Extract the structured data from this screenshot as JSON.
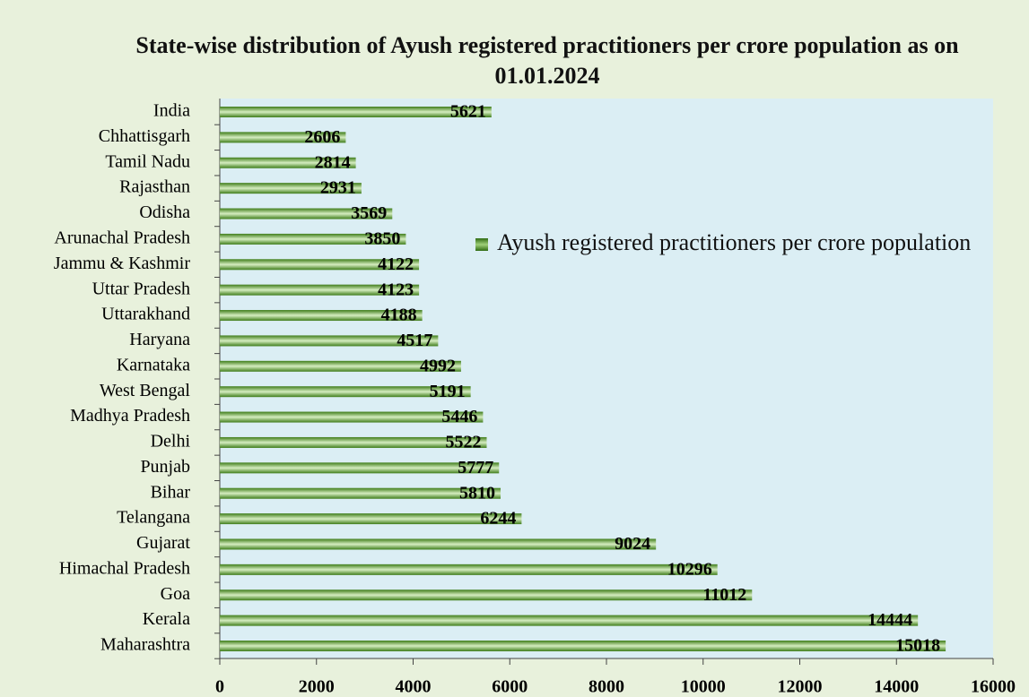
{
  "chart_data": {
    "type": "bar",
    "orientation": "horizontal",
    "title": "State-wise distribution of Ayush registered practitioners per crore population as on 01.01.2024",
    "categories": [
      "India",
      "Chhattisgarh",
      "Tamil Nadu",
      "Rajasthan",
      "Odisha",
      "Arunachal Pradesh",
      "Jammu & Kashmir",
      "Uttar Pradesh",
      "Uttarakhand",
      "Haryana",
      "Karnataka",
      "West Bengal",
      "Madhya Pradesh",
      "Delhi",
      "Punjab",
      "Bihar",
      "Telangana",
      "Gujarat",
      "Himachal Pradesh",
      "Goa",
      "Kerala",
      "Maharashtra"
    ],
    "series": [
      {
        "name": "Ayush registered practitioners per crore population",
        "color": "#4f8f25",
        "values": [
          5621,
          2606,
          2814,
          2931,
          3569,
          3850,
          4122,
          4123,
          4188,
          4517,
          4992,
          5191,
          5446,
          5522,
          5777,
          5810,
          6244,
          9024,
          10296,
          11012,
          14444,
          15018
        ]
      }
    ],
    "xlim": [
      0,
      16000
    ],
    "xticks": [
      0,
      2000,
      4000,
      6000,
      8000,
      10000,
      12000,
      14000,
      16000
    ],
    "legend": "right"
  }
}
